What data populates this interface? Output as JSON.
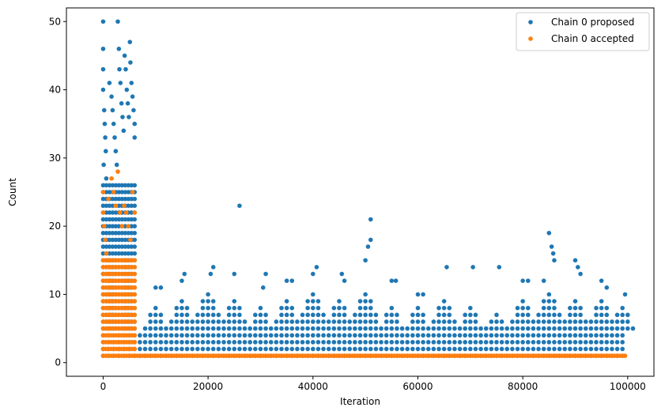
{
  "chart_data": {
    "type": "scatter",
    "xlabel": "Iteration",
    "ylabel": "Count",
    "xlim": [
      -7000,
      105000
    ],
    "ylim": [
      -2,
      52
    ],
    "xticks": [
      0,
      20000,
      40000,
      60000,
      80000,
      100000
    ],
    "xtick_labels": [
      "0",
      "20000",
      "40000",
      "60000",
      "80000",
      "100000"
    ],
    "yticks": [
      0,
      10,
      20,
      30,
      40,
      50
    ],
    "ytick_labels": [
      "0",
      "10",
      "20",
      "30",
      "40",
      "50"
    ],
    "grid": false,
    "legend_position": "top-right",
    "series": [
      {
        "name": "Chain 0 proposed",
        "color": "#1f77b4",
        "points": [
          [
            0,
            50
          ],
          [
            0,
            46
          ],
          [
            0,
            43
          ],
          [
            0,
            40
          ],
          [
            200,
            37
          ],
          [
            300,
            35
          ],
          [
            400,
            33
          ],
          [
            500,
            31
          ],
          [
            100,
            29
          ],
          [
            600,
            27
          ],
          [
            1200,
            41
          ],
          [
            1600,
            39
          ],
          [
            1800,
            37
          ],
          [
            2000,
            35
          ],
          [
            2200,
            33
          ],
          [
            2400,
            31
          ],
          [
            2600,
            29
          ],
          [
            2800,
            50
          ],
          [
            3000,
            46
          ],
          [
            3100,
            43
          ],
          [
            3300,
            41
          ],
          [
            3500,
            38
          ],
          [
            3700,
            36
          ],
          [
            3900,
            34
          ],
          [
            4100,
            45
          ],
          [
            4300,
            43
          ],
          [
            4500,
            40
          ],
          [
            4700,
            38
          ],
          [
            4900,
            36
          ],
          [
            5100,
            47
          ],
          [
            5200,
            44
          ],
          [
            5400,
            41
          ],
          [
            5600,
            39
          ],
          [
            5800,
            37
          ],
          [
            6000,
            35
          ],
          [
            6000,
            33
          ],
          [
            10000,
            11
          ],
          [
            11000,
            11
          ],
          [
            15000,
            12
          ],
          [
            15500,
            13
          ],
          [
            20500,
            13
          ],
          [
            21000,
            14
          ],
          [
            25000,
            13
          ],
          [
            26000,
            23
          ],
          [
            30500,
            11
          ],
          [
            31000,
            13
          ],
          [
            35000,
            12
          ],
          [
            36000,
            12
          ],
          [
            40000,
            13
          ],
          [
            40700,
            14
          ],
          [
            45500,
            13
          ],
          [
            46000,
            12
          ],
          [
            50000,
            15
          ],
          [
            50500,
            17
          ],
          [
            51000,
            21
          ],
          [
            51000,
            18
          ],
          [
            55000,
            12
          ],
          [
            55800,
            12
          ],
          [
            60000,
            10
          ],
          [
            61000,
            10
          ],
          [
            65500,
            14
          ],
          [
            70500,
            14
          ],
          [
            75500,
            14
          ],
          [
            80000,
            12
          ],
          [
            81000,
            12
          ],
          [
            84000,
            12
          ],
          [
            85000,
            19
          ],
          [
            85500,
            17
          ],
          [
            85800,
            16
          ],
          [
            86000,
            15
          ],
          [
            90000,
            15
          ],
          [
            90500,
            14
          ],
          [
            91000,
            13
          ],
          [
            95000,
            12
          ],
          [
            96000,
            11
          ],
          [
            99500,
            10
          ]
        ]
      },
      {
        "name": "Chain 0 accepted",
        "color": "#ff7f0e",
        "points": [
          [
            0,
            25
          ],
          [
            0,
            22
          ],
          [
            200,
            20
          ],
          [
            400,
            18
          ],
          [
            600,
            16
          ],
          [
            1000,
            24
          ],
          [
            1600,
            27
          ],
          [
            2000,
            25
          ],
          [
            2400,
            23
          ],
          [
            2800,
            28
          ],
          [
            3200,
            22
          ],
          [
            3600,
            20
          ],
          [
            4000,
            23
          ],
          [
            4400,
            22
          ],
          [
            4800,
            20
          ],
          [
            5200,
            18
          ],
          [
            5600,
            25
          ],
          [
            6000,
            22
          ]
        ]
      }
    ]
  }
}
